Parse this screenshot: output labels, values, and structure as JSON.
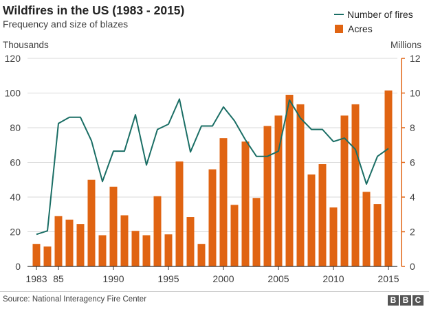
{
  "header": {
    "title": "Wildfires in the US (1983 - 2015)",
    "subtitle": "Frequency and size of blazes"
  },
  "legend": {
    "line_label": "Number of fires",
    "bar_label": "Acres"
  },
  "footer": {
    "source": "Source: National Interagency Fire Center",
    "logo_letters": [
      "B",
      "B",
      "C"
    ]
  },
  "colors": {
    "bars": "#e06412",
    "line": "#1a6e65",
    "grid": "#d9d9d9",
    "text": "#404040",
    "logo": "#555555"
  },
  "chart_data": {
    "type": "bar+line",
    "x": [
      1983,
      1984,
      1985,
      1986,
      1987,
      1988,
      1989,
      1990,
      1991,
      1992,
      1993,
      1994,
      1995,
      1996,
      1997,
      1998,
      1999,
      2000,
      2001,
      2002,
      2003,
      2004,
      2005,
      2006,
      2007,
      2008,
      2009,
      2010,
      2011,
      2012,
      2013,
      2014,
      2015
    ],
    "x_tick_labels": [
      "1983",
      "85",
      "1990",
      "1995",
      "2000",
      "2005",
      "2010",
      "2015"
    ],
    "x_tick_years": [
      1983,
      1985,
      1990,
      1995,
      2000,
      2005,
      2010,
      2015
    ],
    "left_axis": {
      "label": "Thousands",
      "ylim": [
        0,
        120
      ],
      "ticks": [
        0,
        20,
        40,
        60,
        80,
        100,
        120
      ]
    },
    "right_axis": {
      "label": "Millions",
      "ylim": [
        0,
        12
      ],
      "ticks": [
        0,
        2,
        4,
        6,
        8,
        10,
        12
      ]
    },
    "grid": true,
    "legend_position": "top-right",
    "series": [
      {
        "name": "Acres",
        "kind": "bar",
        "axis": "right",
        "unit": "millions",
        "values": [
          1.3,
          1.15,
          2.9,
          2.7,
          2.45,
          5.0,
          1.8,
          4.6,
          2.95,
          2.05,
          1.8,
          4.05,
          1.85,
          6.05,
          2.85,
          1.3,
          5.6,
          7.4,
          3.55,
          7.2,
          3.95,
          8.1,
          8.7,
          9.9,
          9.35,
          5.3,
          5.9,
          3.4,
          8.7,
          9.35,
          4.3,
          3.6,
          10.15
        ]
      },
      {
        "name": "Number of fires",
        "kind": "line",
        "axis": "left",
        "unit": "thousands",
        "values": [
          18.5,
          20.5,
          82.5,
          86,
          86,
          72.5,
          49,
          66.5,
          66.5,
          87.5,
          58.5,
          79,
          82,
          96.5,
          66,
          81,
          81,
          92,
          84,
          73,
          63.5,
          63.5,
          66.5,
          96,
          85.5,
          79,
          79,
          72,
          74,
          67.5,
          47.5,
          63.5,
          68
        ]
      }
    ]
  }
}
